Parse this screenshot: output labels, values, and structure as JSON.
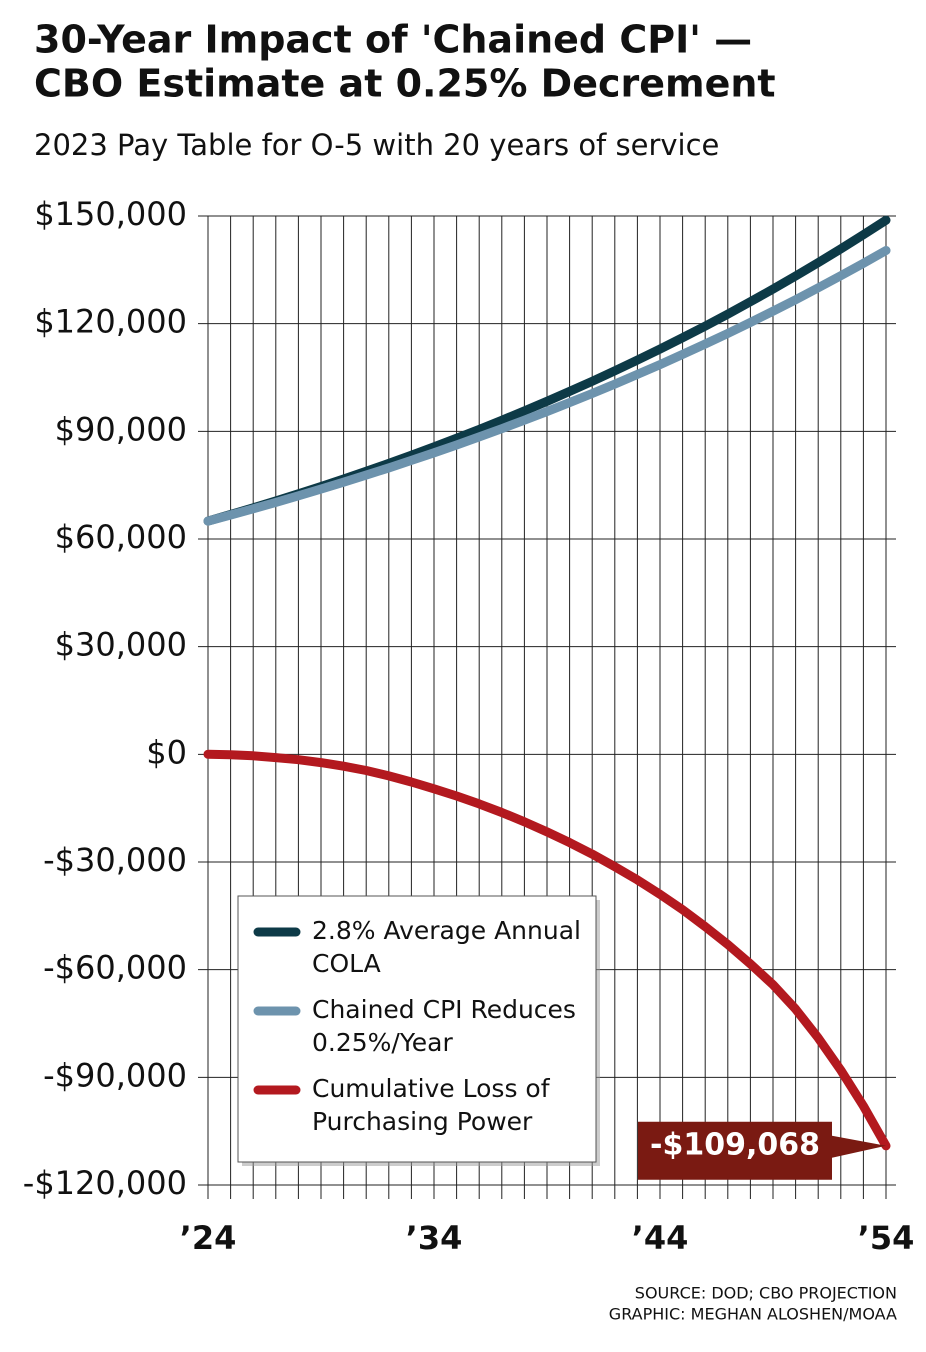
{
  "chart_data": {
    "type": "line",
    "title": "30-Year Impact of 'Chained CPI' —",
    "title_line2": "CBO Estimate at 0.25% Decrement",
    "subtitle": "2023 Pay Table for O-5 with 20 years of service",
    "x": [
      24,
      25,
      26,
      27,
      28,
      29,
      30,
      31,
      32,
      33,
      34,
      35,
      36,
      37,
      38,
      39,
      40,
      41,
      42,
      43,
      44,
      45,
      46,
      47,
      48,
      49,
      50,
      51,
      52,
      53,
      54
    ],
    "xlim": [
      24,
      54
    ],
    "xticks": [
      {
        "value": 24,
        "label": "’24"
      },
      {
        "value": 34,
        "label": "’34"
      },
      {
        "value": 44,
        "label": "’44"
      },
      {
        "value": 54,
        "label": "’54"
      }
    ],
    "ylim": [
      -120000,
      150000
    ],
    "yticks": [
      {
        "value": 150000,
        "label": "$150,000"
      },
      {
        "value": 120000,
        "label": "$120,000"
      },
      {
        "value": 90000,
        "label": "$90,000"
      },
      {
        "value": 60000,
        "label": "$60,000"
      },
      {
        "value": 30000,
        "label": "$30,000"
      },
      {
        "value": 0,
        "label": "$0"
      },
      {
        "value": -30000,
        "label": "-$30,000"
      },
      {
        "value": -60000,
        "label": "-$60,000"
      },
      {
        "value": -90000,
        "label": "-$90,000"
      },
      {
        "value": -120000,
        "label": "-$120,000"
      }
    ],
    "grid": true,
    "series": [
      {
        "name": "2.8% Average Annual COLA",
        "color": "#0d3a47",
        "values": [
          65000,
          66820,
          68692,
          70616,
          72592,
          74627,
          76713,
          78865,
          81068,
          83343,
          85677,
          88075,
          90539,
          93074,
          95680,
          98358,
          101114,
          103948,
          106854,
          109850,
          112925,
          116084,
          119334,
          122675,
          126113,
          129643,
          133276,
          137007,
          140842,
          144788,
          148837
        ]
      },
      {
        "name": "Chained CPI Reduces 0.25%/Year",
        "color": "#6d93ad",
        "values": [
          65000,
          66690,
          68426,
          70200,
          72027,
          73899,
          75823,
          77792,
          79814,
          81887,
          84019,
          86203,
          88446,
          90740,
          93100,
          95524,
          98007,
          100555,
          103168,
          105853,
          108602,
          111430,
          114322,
          117299,
          120348,
          123474,
          126685,
          129981,
          133361,
          136825,
          140381
        ]
      },
      {
        "name": "Cumulative Loss of Purchasing Power",
        "color": "#b3191f",
        "values": [
          0,
          -100,
          -400,
          -900,
          -1500,
          -2300,
          -3300,
          -4500,
          -6000,
          -7700,
          -9600,
          -11600,
          -13800,
          -16200,
          -18800,
          -21600,
          -24600,
          -27800,
          -31300,
          -35000,
          -39000,
          -43300,
          -48000,
          -53000,
          -58400,
          -64200,
          -71000,
          -79000,
          -88000,
          -98000,
          -109068
        ],
        "value_labels": [
          null,
          null,
          null,
          null,
          null,
          null,
          null,
          null,
          null,
          null,
          null,
          null,
          null,
          null,
          null,
          null,
          null,
          null,
          null,
          null,
          null,
          null,
          null,
          null,
          null,
          null,
          null,
          null,
          null,
          null,
          "-$109,068"
        ]
      }
    ],
    "source": "SOURCE: DOD; CBO PROJECTION",
    "credit": "GRAPHIC: MEGHAN ALOSHEN/MOAA"
  }
}
